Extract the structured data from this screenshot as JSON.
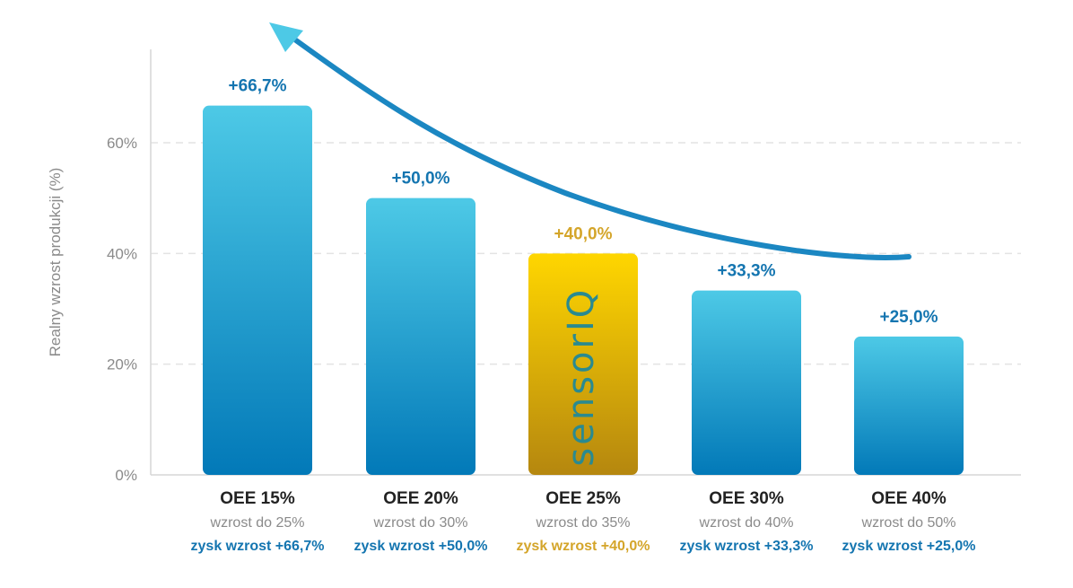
{
  "chart_data": {
    "type": "bar",
    "ylabel": "Realny wzrost produkcji (%)",
    "ylim": [
      0,
      70
    ],
    "yticks": [
      0,
      20,
      40,
      60
    ],
    "ytick_labels": [
      "0%",
      "20%",
      "40%",
      "60%"
    ],
    "grid": true,
    "categories": [
      "OEE 15%",
      "OEE 20%",
      "OEE 25%",
      "OEE 30%",
      "OEE 40%"
    ],
    "values": [
      66.7,
      50.0,
      40.0,
      33.3,
      25.0
    ],
    "value_labels": [
      "+66,7%",
      "+50,0%",
      "+40,0%",
      "+33,3%",
      "+25,0%"
    ],
    "sublabels": [
      "wzrost do 25%",
      "wzrost do 30%",
      "wzrost do 35%",
      "wzrost do 40%",
      "wzrost do 50%"
    ],
    "gain_labels": [
      "zysk wzrost +66,7%",
      "zysk wzrost +50,0%",
      "zysk wzrost +40,0%",
      "zysk wzrost +33,3%",
      "zysk wzrost +25,0%"
    ],
    "highlight_index": 2,
    "highlight_logo": "sensorIQ",
    "colors": {
      "bar_top": "#4dc9e6",
      "bar_bottom": "#0279b8",
      "highlight_top": "#ffd600",
      "highlight_bottom": "#b5870f",
      "label_blue": "#1475b0",
      "label_gold": "#d4a52a",
      "arrow": "#1b87c2",
      "arrow_head": "#4dc9e6",
      "logo": "#2a8a90"
    }
  }
}
